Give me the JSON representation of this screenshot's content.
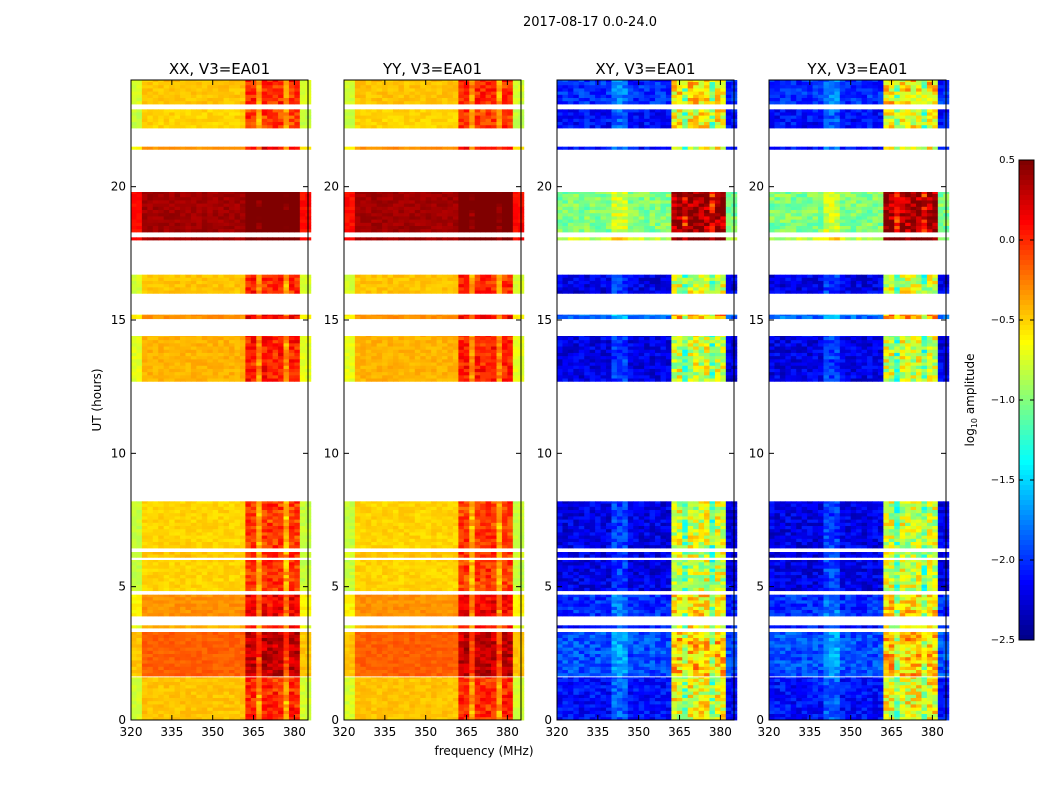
{
  "chart_data": {
    "type": "heatmap",
    "title": "2017-08-17 0.0-24.0",
    "xlabel": "frequency (MHz)",
    "ylabel": "UT (hours)",
    "xlim": [
      320,
      385
    ],
    "ylim": [
      0,
      24
    ],
    "xticks": [
      "320",
      "335",
      "350",
      "365",
      "380"
    ],
    "yticks": [
      "0",
      "5",
      "10",
      "15",
      "20"
    ],
    "colorbar": {
      "label_main": "log",
      "label_sub": "10",
      "label_rest": " amplitude",
      "range": [
        -2.5,
        0.5
      ],
      "ticks": [
        "0.5",
        "0.0",
        "−0.5",
        "−1.0",
        "−1.5",
        "−2.0",
        "−2.5"
      ],
      "tick_values": [
        0.5,
        0.0,
        -0.5,
        -1.0,
        -1.5,
        -2.0,
        -2.5
      ],
      "colormap": "jet"
    },
    "panels": [
      {
        "title": "XX, V3=EA01",
        "kind": "parallel"
      },
      {
        "title": "YY, V3=EA01",
        "kind": "parallel"
      },
      {
        "title": "XY, V3=EA01",
        "kind": "cross"
      },
      {
        "title": "YX, V3=EA01",
        "kind": "cross"
      }
    ],
    "rfi_band_mhz": [
      362,
      381
    ],
    "time_segments_hours": [
      {
        "start": 0.0,
        "end": 1.6,
        "parallel": -0.45,
        "cross": -2.1
      },
      {
        "start": 1.65,
        "end": 3.3,
        "parallel": -0.15,
        "cross": -1.9
      },
      {
        "start": 3.45,
        "end": 3.55,
        "parallel": -0.4,
        "cross": -2.1
      },
      {
        "start": 3.9,
        "end": 4.7,
        "parallel": -0.3,
        "cross": -2.0
      },
      {
        "start": 4.85,
        "end": 6.0,
        "parallel": -0.5,
        "cross": -2.2
      },
      {
        "start": 6.1,
        "end": 6.3,
        "parallel": -0.45,
        "cross": -2.2
      },
      {
        "start": 6.45,
        "end": 8.2,
        "parallel": -0.5,
        "cross": -2.2
      },
      {
        "start": 12.7,
        "end": 14.4,
        "parallel": -0.4,
        "cross": -2.2
      },
      {
        "start": 15.05,
        "end": 15.2,
        "parallel": -0.3,
        "cross": -1.8
      },
      {
        "start": 16.0,
        "end": 16.7,
        "parallel": -0.45,
        "cross": -2.2
      },
      {
        "start": 18.0,
        "end": 18.1,
        "parallel": 0.4,
        "cross": -0.8
      },
      {
        "start": 18.3,
        "end": 19.8,
        "parallel": 0.4,
        "cross": -1.0
      },
      {
        "start": 21.4,
        "end": 21.5,
        "parallel": -0.3,
        "cross": -2.1
      },
      {
        "start": 22.2,
        "end": 22.9,
        "parallel": -0.5,
        "cross": -2.1
      },
      {
        "start": 23.1,
        "end": 24.0,
        "parallel": -0.45,
        "cross": -2.0
      }
    ]
  }
}
